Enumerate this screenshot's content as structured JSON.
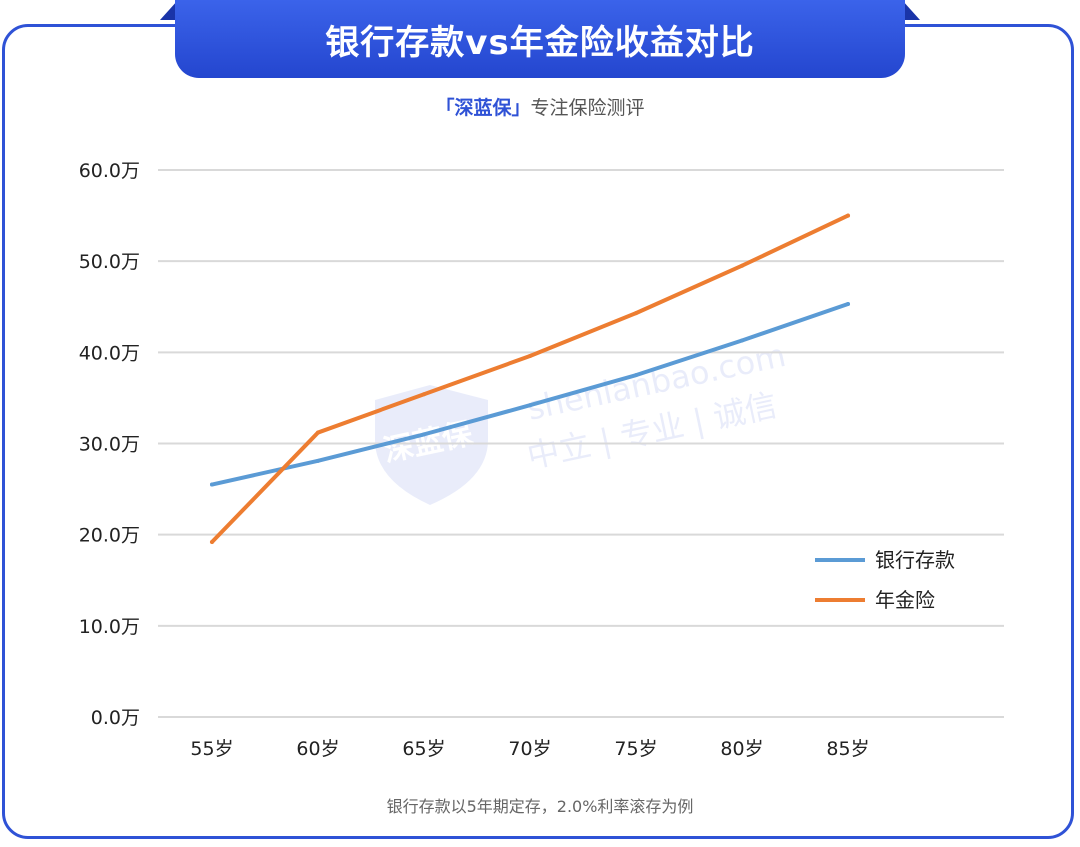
{
  "header": {
    "title": "银行存款vs年金险收益对比",
    "subtitle_brand": "「深蓝保」",
    "subtitle_rest": "专注保险测评"
  },
  "watermark": {
    "domain": "shenlanbao.com",
    "slogan": "中立 | 专业 | 诚信",
    "logo_text": "深蓝保"
  },
  "footnote": "银行存款以5年期定存，2.0%利率滚存为例",
  "chart_data": {
    "type": "line",
    "categories": [
      "55岁",
      "60岁",
      "65岁",
      "70岁",
      "75岁",
      "80岁",
      "85岁"
    ],
    "series": [
      {
        "name": "银行存款",
        "color": "#5b9bd5",
        "values": [
          25.5,
          28.1,
          31.0,
          34.2,
          37.5,
          41.3,
          45.3
        ]
      },
      {
        "name": "年金险",
        "color": "#ed7d31",
        "values": [
          19.2,
          31.2,
          35.4,
          39.6,
          44.3,
          49.5,
          55.0
        ]
      }
    ],
    "ylim": [
      0,
      60
    ],
    "yticks": [
      {
        "value": 0,
        "label": "0.0万"
      },
      {
        "value": 10,
        "label": "10.0万"
      },
      {
        "value": 20,
        "label": "20.0万"
      },
      {
        "value": 30,
        "label": "30.0万"
      },
      {
        "value": 40,
        "label": "40.0万"
      },
      {
        "value": 50,
        "label": "50.0万"
      },
      {
        "value": 60,
        "label": "60.0万"
      }
    ],
    "grid": true,
    "legend_position": "right"
  }
}
